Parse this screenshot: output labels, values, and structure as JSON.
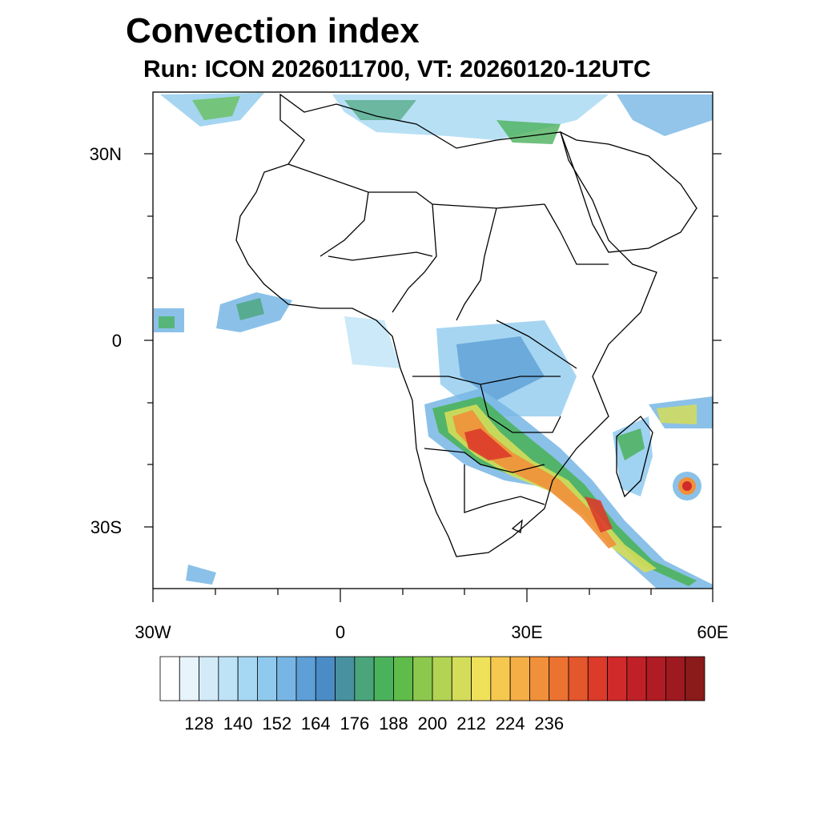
{
  "title": "Convection index",
  "subtitle": "Run: ICON 2026011700,  VT: 20260120-12UTC",
  "map": {
    "projection": "cylindrical equidistant",
    "region": "Africa",
    "lon_range": [
      -30,
      60
    ],
    "lat_range": [
      -40,
      40
    ],
    "y_tick_labels": [
      "30N",
      "0",
      "30S"
    ],
    "x_tick_labels": [
      "30W",
      "0",
      "30E",
      "60E"
    ],
    "features": [
      "Strong convection band from Angola/Zambia through Zimbabwe and Mozambique into the SW Indian Ocean",
      "Tropical cyclone near 55E 23S east of Madagascar",
      "Convection over Congo Basin and the Gulf of Guinea",
      "Weak bands over the Mediterranean and the North Atlantic"
    ]
  },
  "colorbar": {
    "colors": [
      "#ffffff",
      "#e8f4fc",
      "#d3ebf9",
      "#bee3f6",
      "#a6d8f3",
      "#8fcaee",
      "#77b6e4",
      "#5d9fd6",
      "#4a8cc6",
      "#4891a0",
      "#4aa57a",
      "#4bb25c",
      "#5fbc4a",
      "#8cc84e",
      "#b3d353",
      "#d4dd59",
      "#efe159",
      "#f7c850",
      "#f5ad45",
      "#f1903a",
      "#ec7232",
      "#e4562c",
      "#dc3b2a",
      "#d02a2a",
      "#c02128",
      "#b01c24",
      "#9e1a20",
      "#8b1a1a"
    ],
    "tick_labels": [
      "128",
      "140",
      "152",
      "164",
      "176",
      "188",
      "200",
      "212",
      "224",
      "236"
    ],
    "tick_values": [
      128,
      140,
      152,
      164,
      176,
      188,
      200,
      212,
      224,
      236
    ]
  }
}
